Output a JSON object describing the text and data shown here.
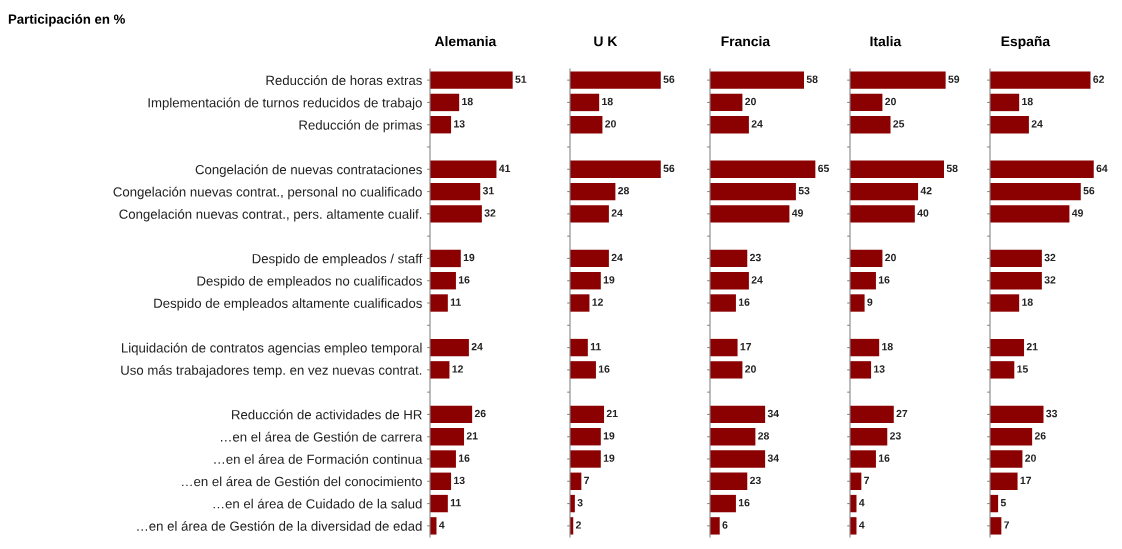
{
  "chart_data": [
    {
      "type": "bar",
      "orientation": "horizontal",
      "title": "Alemania",
      "annotations": [
        "Participación en %"
      ],
      "tick_labels": "y",
      "data_labels": true,
      "color": "#8b0000",
      "categories": [
        "Reducción de horas extras",
        "Implementación de turnos reducidos de trabajo",
        "Reducción de primas",
        null,
        "Congelación de nuevas contrataciones",
        "Congelación nuevas contrat., personal no cualificado",
        "Congelación nuevas contrat., pers. altamente cualif.",
        null,
        "Despido de empleados / staff",
        "Despido de empleados no cualificados",
        "Despido de empleados altamente cualificados",
        null,
        "Liquidación de contratos agencias empleo temporal",
        "Uso más trabajadores temp. en vez nuevas contrat.",
        null,
        "Reducción de actividades de HR",
        "…en el área de Gestión de carrera",
        "…en el área de Formación continua",
        "…en el área de Gestión del conocimiento",
        "…en el área de Cuidado de la salud",
        "…en el área de Gestión de la diversidad de edad"
      ],
      "values": [
        51,
        18,
        13,
        null,
        41,
        31,
        32,
        null,
        19,
        16,
        11,
        null,
        24,
        12,
        null,
        26,
        21,
        16,
        13,
        11,
        4
      ]
    },
    {
      "type": "bar",
      "orientation": "horizontal",
      "title": "U K",
      "data_labels": true,
      "color": "#8b0000",
      "categories": [
        null,
        null,
        null,
        null,
        null,
        null,
        null,
        null,
        null,
        null,
        null,
        null,
        null,
        null,
        null,
        null,
        null,
        null,
        null,
        null,
        null
      ],
      "values": [
        56,
        18,
        20,
        null,
        56,
        28,
        24,
        null,
        24,
        19,
        12,
        null,
        11,
        16,
        null,
        21,
        19,
        19,
        7,
        3,
        2
      ]
    },
    {
      "type": "bar",
      "orientation": "horizontal",
      "title": "Francia",
      "data_labels": true,
      "color": "#8b0000",
      "categories": [
        null,
        null,
        null,
        null,
        null,
        null,
        null,
        null,
        null,
        null,
        null,
        null,
        null,
        null,
        null,
        null,
        null,
        null,
        null,
        null,
        null
      ],
      "values": [
        58,
        20,
        24,
        null,
        65,
        53,
        49,
        null,
        23,
        24,
        16,
        null,
        17,
        20,
        null,
        34,
        28,
        34,
        23,
        16,
        6
      ]
    },
    {
      "type": "bar",
      "orientation": "horizontal",
      "title": "Italia",
      "data_labels": true,
      "color": "#8b0000",
      "categories": [
        null,
        null,
        null,
        null,
        null,
        null,
        null,
        null,
        null,
        null,
        null,
        null,
        null,
        null,
        null,
        null,
        null,
        null,
        null,
        null,
        null
      ],
      "values": [
        59,
        20,
        25,
        null,
        58,
        42,
        40,
        null,
        20,
        16,
        9,
        null,
        18,
        13,
        null,
        27,
        23,
        16,
        7,
        4,
        4
      ]
    },
    {
      "type": "bar",
      "orientation": "horizontal",
      "title": "España",
      "data_labels": true,
      "color": "#8b0000",
      "categories": [
        null,
        null,
        null,
        null,
        null,
        null,
        null,
        null,
        null,
        null,
        null,
        null,
        null,
        null,
        null,
        null,
        null,
        null,
        null,
        null,
        null
      ],
      "values": [
        62,
        18,
        24,
        null,
        64,
        56,
        49,
        null,
        32,
        32,
        18,
        null,
        21,
        15,
        null,
        33,
        26,
        20,
        17,
        5,
        7
      ]
    }
  ]
}
